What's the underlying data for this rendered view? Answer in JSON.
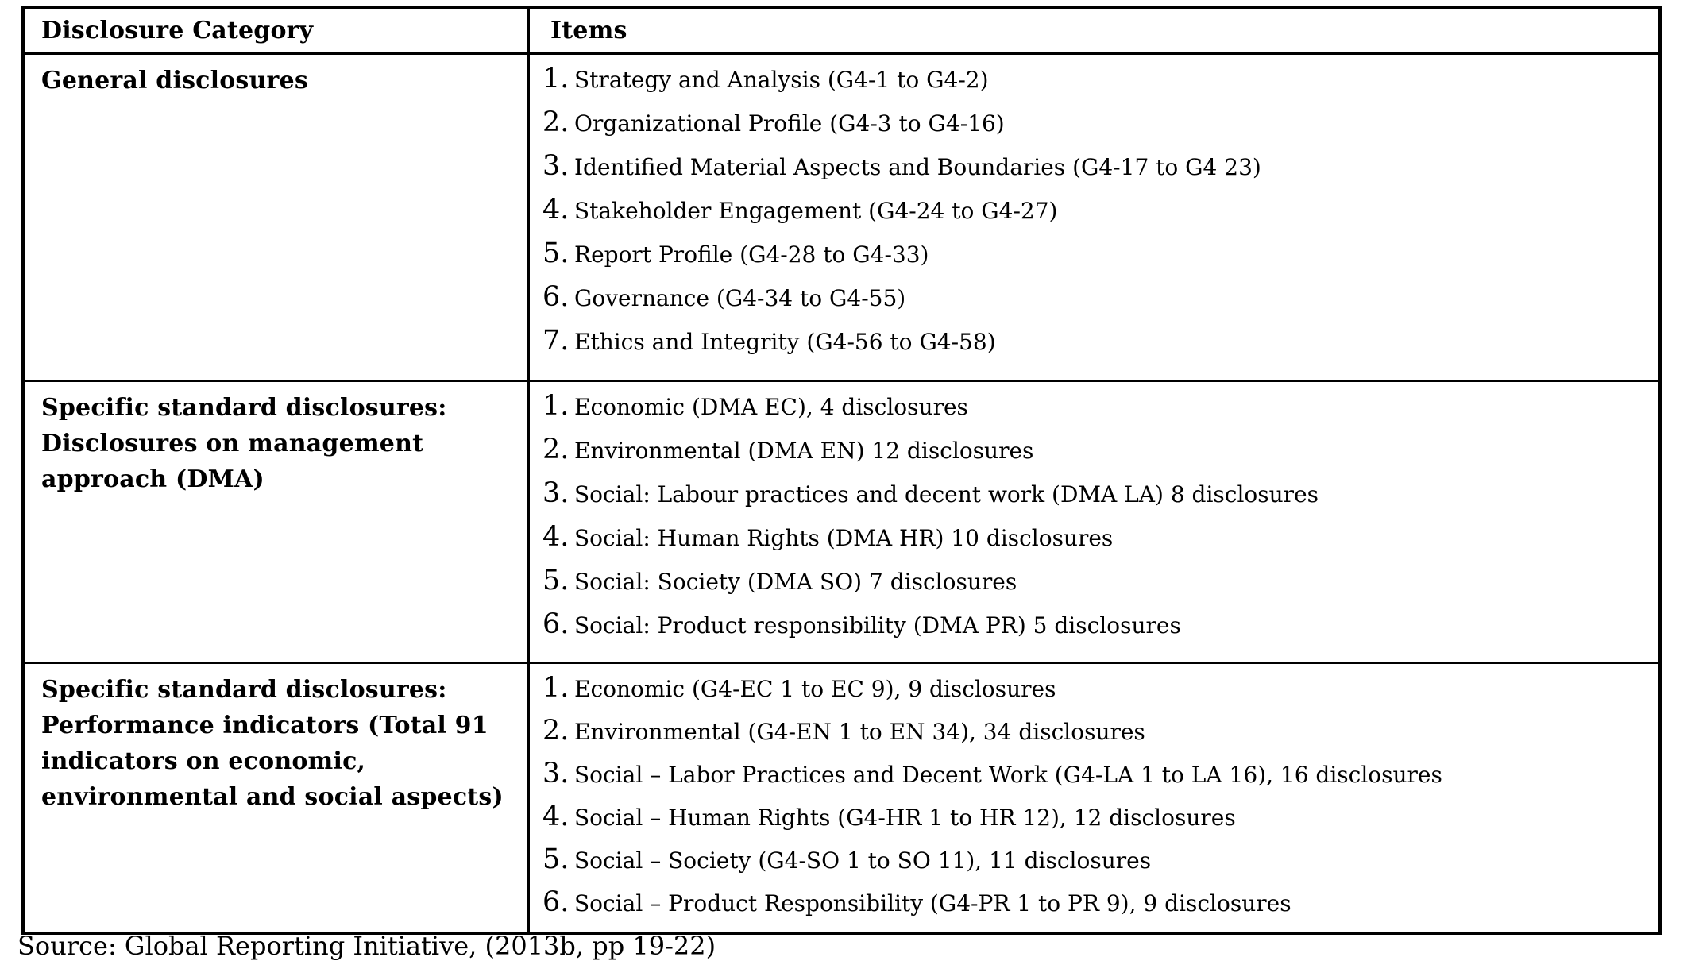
{
  "table": {
    "headers": {
      "category": "Disclosure Category",
      "items": "Items"
    },
    "rows": [
      {
        "category_lines": [
          "General disclosures"
        ],
        "items": [
          {
            "num": "1.",
            "text": "Strategy and Analysis (G4-1 to G4-2)"
          },
          {
            "num": "2.",
            "text": "Organizational Profile (G4-3 to G4-16)"
          },
          {
            "num": "3.",
            "text": "Identified Material Aspects and Boundaries (G4-17 to G4 23)"
          },
          {
            "num": "4.",
            "text": "Stakeholder Engagement (G4-24 to G4-27)"
          },
          {
            "num": "5.",
            "text": "Report Profile (G4-28 to G4-33)"
          },
          {
            "num": "6.",
            "text": "Governance (G4-34 to G4-55)"
          },
          {
            "num": "7.",
            "text": "Ethics and Integrity (G4-56 to G4-58)"
          }
        ]
      },
      {
        "category_lines": [
          "Specific standard disclosures:",
          "Disclosures on management",
          "approach (DMA)"
        ],
        "items": [
          {
            "num": "1.",
            "text": "Economic (DMA EC), 4 disclosures"
          },
          {
            "num": "2.",
            "text": "Environmental (DMA EN) 12 disclosures"
          },
          {
            "num": "3.",
            "text": "Social: Labour practices and decent work (DMA LA) 8 disclosures"
          },
          {
            "num": "4.",
            "text": "Social: Human Rights (DMA HR) 10 disclosures"
          },
          {
            "num": "5.",
            "text": "Social: Society (DMA SO) 7 disclosures"
          },
          {
            "num": "6.",
            "text": "Social: Product responsibility (DMA PR) 5 disclosures"
          }
        ]
      },
      {
        "category_lines": [
          "Specific standard disclosures:",
          "Performance indicators (Total 91",
          "indicators on economic,",
          "environmental and social aspects)"
        ],
        "items": [
          {
            "num": "1.",
            "text": "Economic (G4-EC 1 to EC 9), 9 disclosures"
          },
          {
            "num": "2.",
            "text": "Environmental (G4-EN 1 to EN 34), 34 disclosures"
          },
          {
            "num": "3.",
            "text": "Social – Labor Practices and Decent Work (G4-LA 1 to LA 16), 16 disclosures"
          },
          {
            "num": "4.",
            "text": "Social – Human Rights (G4-HR 1 to HR 12), 12 disclosures"
          },
          {
            "num": "5.",
            "text": "Social – Society (G4-SO 1 to SO 11), 11 disclosures"
          },
          {
            "num": "6.",
            "text": "Social – Product Responsibility (G4-PR 1 to PR 9), 9 disclosures"
          }
        ]
      }
    ]
  },
  "source_note": "Source: Global Reporting Initiative, (2013b, pp 19-22)",
  "colors": {
    "background": "#ffffff",
    "text": "#000000",
    "border": "#000000"
  }
}
